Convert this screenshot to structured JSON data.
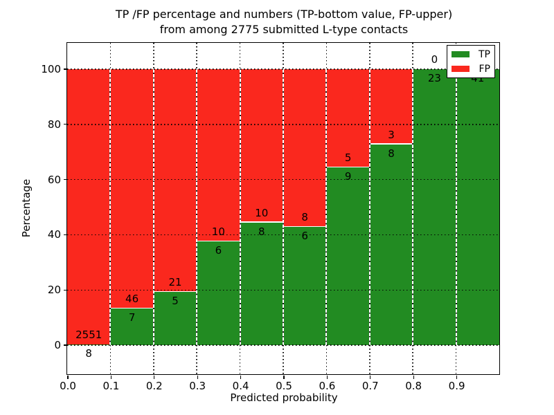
{
  "chart_data": {
    "type": "bar",
    "stacked": true,
    "normalized_to_percent": true,
    "title_line1": "TP /FP percentage and numbers (TP-bottom value, FP-upper)",
    "title_line2": "from among 2775 submitted L-type contacts",
    "xlabel": "Predicted probability",
    "ylabel": "Percentage",
    "xlim": [
      0.0,
      1.0
    ],
    "ylim": [
      -10.5,
      109.5
    ],
    "grid": true,
    "x_tick_labels": [
      "0.0",
      "0.1",
      "0.2",
      "0.3",
      "0.4",
      "0.5",
      "0.6",
      "0.7",
      "0.8",
      "0.9"
    ],
    "y_ticks": [
      0,
      20,
      40,
      60,
      80,
      100
    ],
    "y_tick_labels": [
      "0",
      "20",
      "40",
      "60",
      "80",
      "100"
    ],
    "bin_width": 0.1,
    "bins": [
      {
        "x0": 0.0,
        "x1": 0.1,
        "tp": 8,
        "fp": 2551
      },
      {
        "x0": 0.1,
        "x1": 0.2,
        "tp": 7,
        "fp": 46
      },
      {
        "x0": 0.2,
        "x1": 0.3,
        "tp": 5,
        "fp": 21
      },
      {
        "x0": 0.3,
        "x1": 0.4,
        "tp": 6,
        "fp": 10
      },
      {
        "x0": 0.4,
        "x1": 0.5,
        "tp": 8,
        "fp": 10
      },
      {
        "x0": 0.5,
        "x1": 0.6,
        "tp": 6,
        "fp": 8
      },
      {
        "x0": 0.6,
        "x1": 0.7,
        "tp": 9,
        "fp": 5
      },
      {
        "x0": 0.7,
        "x1": 0.8,
        "tp": 8,
        "fp": 3
      },
      {
        "x0": 0.8,
        "x1": 0.9,
        "tp": 23,
        "fp": 0
      },
      {
        "x0": 0.9,
        "x1": 1.0,
        "tp": 41,
        "fp": 0
      }
    ],
    "series": [
      {
        "name": "TP",
        "color": "#228b22"
      },
      {
        "name": "FP",
        "color": "#fa281e"
      }
    ],
    "legend": {
      "position": "upper right",
      "entries": [
        {
          "label": "TP",
          "color": "#228b22"
        },
        {
          "label": "FP",
          "color": "#fa281e"
        }
      ]
    },
    "total_contacts": 2775
  }
}
